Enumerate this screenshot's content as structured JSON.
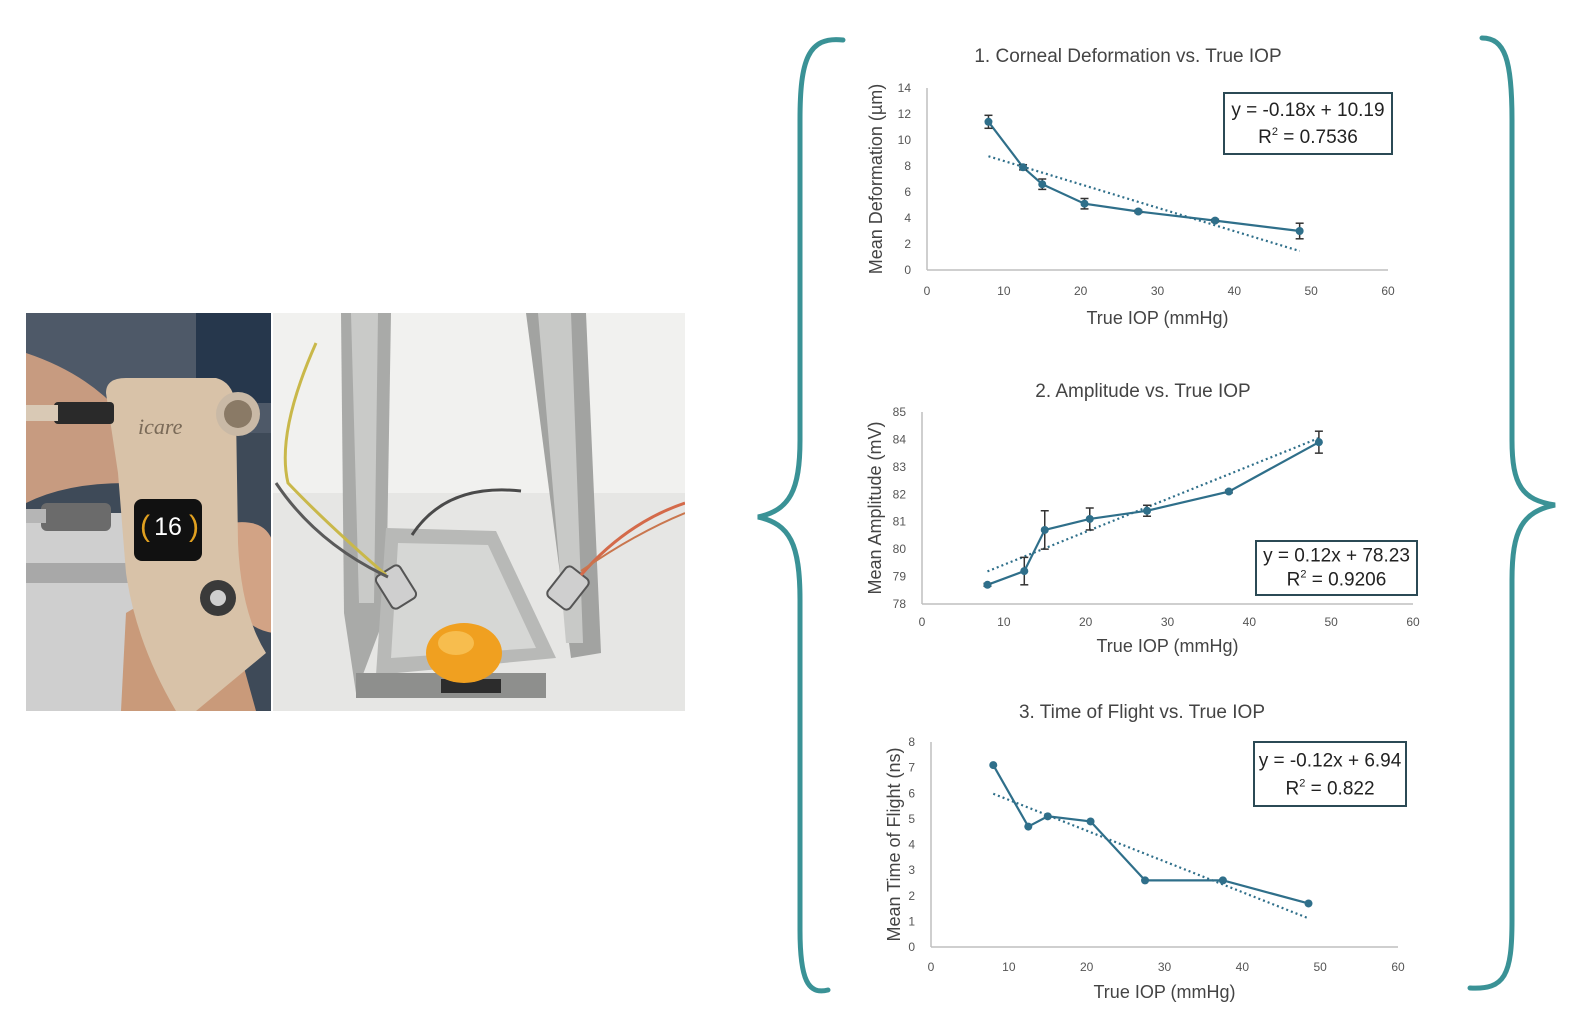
{
  "photo": {
    "device_brand": "icare",
    "device_reading": "16"
  },
  "colors": {
    "brace": "#3a9296",
    "series": "#2f6f8a",
    "axis": "#bfbfbf"
  },
  "chart_data": [
    {
      "type": "line",
      "title": "1. Corneal Deformation vs. True IOP",
      "xlabel": "True IOP (mmHg)",
      "ylabel": "Mean Deformation  (µm)",
      "xlim": [
        0,
        60
      ],
      "ylim": [
        0,
        14
      ],
      "xticks": [
        "0",
        "10",
        "20",
        "30",
        "40",
        "50",
        "60"
      ],
      "yticks": [
        "0",
        "2",
        "4",
        "6",
        "8",
        "10",
        "12",
        "14"
      ],
      "x": [
        8,
        12.5,
        15,
        20.5,
        27.5,
        37.5,
        48.5
      ],
      "y": [
        11.4,
        7.9,
        6.6,
        5.1,
        4.5,
        3.8,
        3.0
      ],
      "err": [
        0.5,
        0.2,
        0.4,
        0.4,
        0.1,
        0.1,
        0.6
      ],
      "trend": {
        "slope": -0.18,
        "intercept": 10.19,
        "x_range": [
          8,
          48.5
        ],
        "style": "dotted"
      },
      "annotation": {
        "equation": "y = -0.18x + 10.19",
        "r2_label": "R",
        "r2_value": " = 0.7536"
      },
      "grid": false,
      "legend": "none"
    },
    {
      "type": "line",
      "title": "2. Amplitude vs. True IOP",
      "xlabel": "True IOP (mmHg)",
      "ylabel": "Mean Amplitude (mV)",
      "xlim": [
        0,
        60
      ],
      "ylim": [
        78,
        85
      ],
      "xticks": [
        "0",
        "10",
        "20",
        "30",
        "40",
        "50",
        "60"
      ],
      "yticks": [
        "78",
        "79",
        "80",
        "81",
        "82",
        "83",
        "84",
        "85"
      ],
      "x": [
        8,
        12.5,
        15,
        20.5,
        27.5,
        37.5,
        48.5
      ],
      "y": [
        78.7,
        79.2,
        80.7,
        81.1,
        81.4,
        82.1,
        83.9
      ],
      "err": [
        0.05,
        0.5,
        0.7,
        0.4,
        0.2,
        0.05,
        0.4
      ],
      "trend": {
        "slope": 0.12,
        "intercept": 78.23,
        "x_range": [
          8,
          48.5
        ],
        "style": "dotted"
      },
      "annotation": {
        "equation": "y = 0.12x + 78.23",
        "r2_label": "R",
        "r2_value": " = 0.9206"
      },
      "grid": false,
      "legend": "none"
    },
    {
      "type": "line",
      "title": "3. Time of Flight vs. True IOP",
      "xlabel": "True IOP (mmHg)",
      "ylabel": "Mean Time of Flight (ns)",
      "xlim": [
        0,
        60
      ],
      "ylim": [
        0,
        8
      ],
      "xticks": [
        "0",
        "10",
        "20",
        "30",
        "40",
        "50",
        "60"
      ],
      "yticks": [
        "0",
        "1",
        "2",
        "3",
        "4",
        "5",
        "6",
        "7",
        "8"
      ],
      "x": [
        8,
        12.5,
        15,
        20.5,
        27.5,
        37.5,
        48.5
      ],
      "y": [
        7.1,
        4.7,
        5.1,
        4.9,
        2.6,
        2.6,
        1.7
      ],
      "err": [],
      "trend": {
        "slope": -0.12,
        "intercept": 6.94,
        "x_range": [
          8,
          48.5
        ],
        "style": "dotted"
      },
      "annotation": {
        "equation": "y = -0.12x + 6.94",
        "r2_label": "R",
        "r2_value": " = 0.822"
      },
      "grid": false,
      "legend": "none"
    }
  ]
}
